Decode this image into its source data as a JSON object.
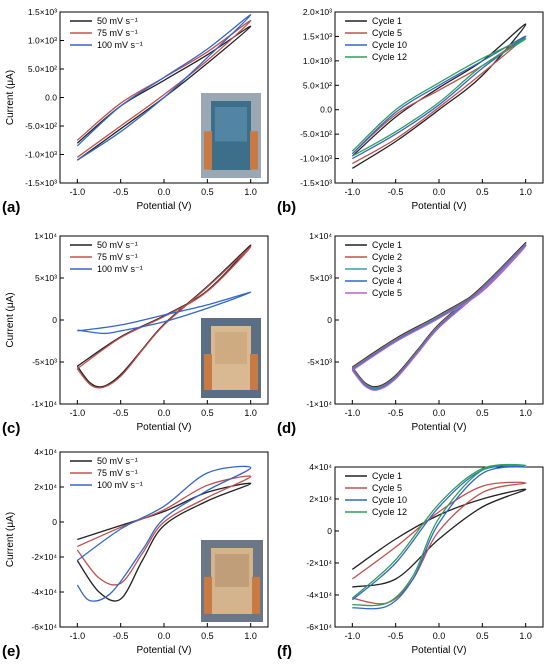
{
  "chart_data": [
    {
      "panel_label": "(a)",
      "type": "line",
      "xlabel": "Potential (V)",
      "ylabel": "Current (μA)",
      "xlim": [
        -1.2,
        1.2
      ],
      "ylim": [
        -1500,
        1500
      ],
      "xticks": [
        -1.0,
        -0.5,
        0.0,
        0.5,
        1.0
      ],
      "xtick_labels": [
        "-1.0",
        "-0.5",
        "0.0",
        "0.5",
        "1.0"
      ],
      "yticks": [
        -1500,
        -1000,
        -500,
        0,
        500,
        1000,
        1500
      ],
      "ytick_labels": [
        "-1.5×10³",
        "-1.0×10³",
        "-5.0×10²",
        "0.0",
        "5.0×10²",
        "1.0×10³",
        "1.5×10³"
      ],
      "legend": "top-left",
      "inset_photo": "blue-coated-electrode-photo",
      "series": [
        {
          "name": "50 mV s⁻¹",
          "color": "#222222",
          "x": [
            -1.0,
            -0.5,
            0.0,
            0.5,
            1.0,
            0.5,
            0.0,
            -0.5,
            -1.0
          ],
          "y": [
            -1100,
            -550,
            0,
            600,
            1250,
            750,
            300,
            -150,
            -800
          ]
        },
        {
          "name": "75 mV s⁻¹",
          "color": "#c0504d",
          "x": [
            -1.0,
            -0.5,
            0.0,
            0.5,
            1.0,
            0.5,
            0.0,
            -0.5,
            -1.0
          ],
          "y": [
            -1050,
            -500,
            50,
            650,
            1350,
            800,
            350,
            -100,
            -750
          ]
        },
        {
          "name": "100 mV s⁻¹",
          "color": "#3366cc",
          "x": [
            -1.0,
            -0.5,
            0.0,
            0.5,
            1.0,
            0.5,
            0.0,
            -0.5,
            -1.0
          ],
          "y": [
            -1100,
            -600,
            0,
            700,
            1450,
            850,
            350,
            -150,
            -850
          ]
        }
      ]
    },
    {
      "panel_label": "(b)",
      "type": "line",
      "xlabel": "Potential (V)",
      "ylabel": "",
      "xlim": [
        -1.2,
        1.2
      ],
      "ylim": [
        -1500,
        2000
      ],
      "xticks": [
        -1.0,
        -0.5,
        0.0,
        0.5,
        1.0
      ],
      "xtick_labels": [
        "-1.0",
        "-0.5",
        "0.0",
        "0.5",
        "1.0"
      ],
      "yticks": [
        -1500,
        -1000,
        -500,
        0,
        500,
        1000,
        1500,
        2000
      ],
      "ytick_labels": [
        "-1.5×10³",
        "-1.0×10³",
        "-5.0×10²",
        "0.0",
        "5.0×10²",
        "1.0×10³",
        "1.5×10³",
        "2.0×10³"
      ],
      "legend": "top-left",
      "series": [
        {
          "name": "Cycle 1",
          "color": "#222222",
          "x": [
            -1.0,
            -0.5,
            0.0,
            0.5,
            1.0,
            0.5,
            0.0,
            -0.5,
            -1.0
          ],
          "y": [
            -1200,
            -650,
            0,
            700,
            1750,
            1000,
            450,
            -150,
            -950
          ]
        },
        {
          "name": "Cycle 5",
          "color": "#c0504d",
          "x": [
            -1.0,
            -0.5,
            0.0,
            0.5,
            1.0,
            0.5,
            0.0,
            -0.5,
            -1.0
          ],
          "y": [
            -1100,
            -600,
            50,
            750,
            1500,
            900,
            400,
            -100,
            -900
          ]
        },
        {
          "name": "Cycle 10",
          "color": "#3366cc",
          "x": [
            -1.0,
            -0.5,
            0.0,
            0.5,
            1.0,
            0.5,
            0.0,
            -0.5,
            -1.0
          ],
          "y": [
            -1000,
            -500,
            100,
            850,
            1500,
            1000,
            500,
            -50,
            -900
          ]
        },
        {
          "name": "Cycle 12",
          "color": "#2e9e5b",
          "x": [
            -1.0,
            -0.5,
            0.0,
            0.5,
            1.0,
            0.5,
            0.0,
            -0.5,
            -1.0
          ],
          "y": [
            -950,
            -450,
            150,
            900,
            1450,
            1050,
            550,
            0,
            -850
          ]
        }
      ]
    },
    {
      "panel_label": "(c)",
      "type": "line",
      "xlabel": "Potential (V)",
      "ylabel": "Current (μA)",
      "xlim": [
        -1.2,
        1.2
      ],
      "ylim": [
        -10000,
        10000
      ],
      "xticks": [
        -1.0,
        -0.5,
        0.0,
        0.5,
        1.0
      ],
      "xtick_labels": [
        "-1.0",
        "-0.5",
        "0.0",
        "0.5",
        "1.0"
      ],
      "yticks": [
        -10000,
        -5000,
        0,
        5000,
        10000
      ],
      "ytick_labels": [
        "-1×10⁴",
        "-5×10³",
        "0",
        "5×10³",
        "1×10⁴"
      ],
      "legend": "top-left",
      "inset_photo": "light-wood-electrode-photo",
      "series": [
        {
          "name": "50 mV s⁻¹",
          "color": "#222222",
          "x": [
            -1.0,
            -0.85,
            -0.7,
            -0.5,
            -0.25,
            0.0,
            0.5,
            1.0,
            0.5,
            0.0,
            -0.5,
            -1.0
          ],
          "y": [
            -5500,
            -7500,
            -7900,
            -6500,
            -3500,
            -500,
            4000,
            8900,
            3500,
            500,
            -2000,
            -5500
          ]
        },
        {
          "name": "75 mV s⁻¹",
          "color": "#c0504d",
          "x": [
            -1.0,
            -0.85,
            -0.7,
            -0.5,
            -0.25,
            0.0,
            0.5,
            1.0,
            0.5,
            0.0,
            -0.5,
            -1.0
          ],
          "y": [
            -5800,
            -7700,
            -8000,
            -6700,
            -3600,
            -600,
            3900,
            8700,
            3400,
            400,
            -2100,
            -5800
          ]
        },
        {
          "name": "100 mV s⁻¹",
          "color": "#3366cc",
          "x": [
            -1.0,
            -0.7,
            -0.5,
            0.0,
            0.5,
            1.0,
            0.5,
            0.0,
            -0.5,
            -1.0
          ],
          "y": [
            -1200,
            -1600,
            -1300,
            -200,
            1400,
            3300,
            1800,
            600,
            -600,
            -1300
          ]
        }
      ]
    },
    {
      "panel_label": "(d)",
      "type": "line",
      "xlabel": "Potential (V)",
      "ylabel": "",
      "xlim": [
        -1.2,
        1.2
      ],
      "ylim": [
        -10000,
        10000
      ],
      "xticks": [
        -1.0,
        -0.5,
        0.0,
        0.5,
        1.0
      ],
      "xtick_labels": [
        "-1.0",
        "-0.5",
        "0.0",
        "0.5",
        "1.0"
      ],
      "yticks": [
        -10000,
        -5000,
        0,
        5000,
        10000
      ],
      "ytick_labels": [
        "-1×10⁴",
        "-5×10³",
        "0",
        "5×10³",
        "1×10⁴"
      ],
      "legend": "top-left",
      "series": [
        {
          "name": "Cycle 1",
          "color": "#222222",
          "x": [
            -1.0,
            -0.85,
            -0.7,
            -0.5,
            -0.25,
            0.0,
            0.5,
            1.0,
            0.5,
            0.0,
            -0.5,
            -1.0
          ],
          "y": [
            -5600,
            -7500,
            -7900,
            -6600,
            -3600,
            -500,
            4000,
            9200,
            3800,
            600,
            -2200,
            -5600
          ]
        },
        {
          "name": "Cycle 2",
          "color": "#c0504d",
          "x": [
            -1.0,
            -0.85,
            -0.7,
            -0.5,
            -0.25,
            0.0,
            0.5,
            1.0,
            0.5,
            0.0,
            -0.5,
            -1.0
          ],
          "y": [
            -5700,
            -7600,
            -8000,
            -6700,
            -3700,
            -600,
            3900,
            9100,
            3700,
            500,
            -2300,
            -5700
          ]
        },
        {
          "name": "Cycle 3",
          "color": "#2ea8a8",
          "x": [
            -1.0,
            -0.85,
            -0.7,
            -0.5,
            -0.25,
            0.0,
            0.5,
            1.0,
            0.5,
            0.0,
            -0.5,
            -1.0
          ],
          "y": [
            -5800,
            -7700,
            -8100,
            -6800,
            -3800,
            -700,
            3800,
            9000,
            3600,
            400,
            -2400,
            -5800
          ]
        },
        {
          "name": "Cycle 4",
          "color": "#3366cc",
          "x": [
            -1.0,
            -0.85,
            -0.7,
            -0.5,
            -0.25,
            0.0,
            0.5,
            1.0,
            0.5,
            0.0,
            -0.5,
            -1.0
          ],
          "y": [
            -5900,
            -7800,
            -8200,
            -6900,
            -3900,
            -800,
            3700,
            8900,
            3500,
            300,
            -2500,
            -5900
          ]
        },
        {
          "name": "Cycle 5",
          "color": "#b366cc",
          "x": [
            -1.0,
            -0.85,
            -0.7,
            -0.5,
            -0.25,
            0.0,
            0.5,
            1.0,
            0.5,
            0.0,
            -0.5,
            -1.0
          ],
          "y": [
            -6000,
            -7900,
            -8300,
            -7000,
            -4000,
            -900,
            3600,
            8800,
            3400,
            200,
            -2600,
            -6000
          ]
        }
      ]
    },
    {
      "panel_label": "(e)",
      "type": "line",
      "xlabel": "Potential (V)",
      "ylabel": "Current (μA)",
      "xlim": [
        -1.2,
        1.2
      ],
      "ylim": [
        -60000,
        40000
      ],
      "xticks": [
        -1.0,
        -0.5,
        0.0,
        0.5,
        1.0
      ],
      "xtick_labels": [
        "-1.0",
        "-0.5",
        "0.0",
        "0.5",
        "1.0"
      ],
      "yticks": [
        -60000,
        -40000,
        -20000,
        0,
        20000,
        40000
      ],
      "ytick_labels": [
        "-6×10⁴",
        "-4×10⁴",
        "-2×10⁴",
        "0",
        "2×10⁴",
        "4×10⁴"
      ],
      "legend": "top-left",
      "inset_photo": "wood-grain-electrode-photo",
      "series": [
        {
          "name": "50 mV s⁻¹",
          "color": "#222222",
          "x": [
            -1.0,
            -0.75,
            -0.5,
            -0.25,
            0.0,
            0.5,
            1.0,
            0.5,
            0.0,
            -0.5,
            -1.0
          ],
          "y": [
            -22000,
            -40000,
            -44000,
            -22000,
            -2000,
            12000,
            22000,
            17000,
            6000,
            -2000,
            -10000
          ]
        },
        {
          "name": "75 mV s⁻¹",
          "color": "#c0504d",
          "x": [
            -1.0,
            -0.75,
            -0.5,
            -0.25,
            0.0,
            0.5,
            1.0,
            0.5,
            0.0,
            -0.5,
            -1.0
          ],
          "y": [
            -16000,
            -32000,
            -35000,
            -18000,
            0,
            14000,
            26000,
            21000,
            7000,
            -3000,
            -14000
          ]
        },
        {
          "name": "100 mV s⁻¹",
          "color": "#3366cc",
          "x": [
            -1.0,
            -0.85,
            -0.6,
            -0.25,
            0.0,
            0.5,
            1.0,
            0.5,
            0.0,
            -0.5,
            -1.0
          ],
          "y": [
            -36000,
            -45000,
            -40000,
            -16000,
            2000,
            18000,
            31000,
            28000,
            9000,
            -4000,
            -22000
          ]
        }
      ]
    },
    {
      "panel_label": "(f)",
      "type": "line",
      "xlabel": "Potential (V)",
      "ylabel": "",
      "xlim": [
        -1.2,
        1.2
      ],
      "ylim": [
        -60000,
        40000
      ],
      "xticks": [
        -1.0,
        -0.5,
        0.0,
        0.5,
        1.0
      ],
      "xtick_labels": [
        "-1.0",
        "-0.5",
        "0.0",
        "0.5",
        "1.0"
      ],
      "yticks": [
        -60000,
        -40000,
        -20000,
        0,
        20000,
        40000
      ],
      "ytick_labels": [
        "-6×10⁴",
        "-4×10⁴",
        "-2×10⁴",
        "0",
        "2×10⁴",
        "4×10⁴"
      ],
      "legend": "top-left",
      "series": [
        {
          "name": "Cycle 1",
          "color": "#222222",
          "x": [
            -1.0,
            -0.5,
            0.0,
            0.5,
            1.0,
            0.5,
            0.0,
            -0.5,
            -1.0
          ],
          "y": [
            -35000,
            -30000,
            -5000,
            15000,
            26000,
            20000,
            10000,
            -5000,
            -24000
          ]
        },
        {
          "name": "Cycle 5",
          "color": "#c0504d",
          "x": [
            -1.0,
            -0.6,
            -0.3,
            0.0,
            0.5,
            1.0,
            0.5,
            0.0,
            -0.5,
            -1.0
          ],
          "y": [
            -42000,
            -45000,
            -30000,
            0,
            24000,
            30000,
            28000,
            12000,
            -10000,
            -30000
          ]
        },
        {
          "name": "Cycle 10",
          "color": "#3366cc",
          "x": [
            -1.0,
            -0.6,
            -0.3,
            0.0,
            0.5,
            1.0,
            0.5,
            0.0,
            -0.5,
            -1.0
          ],
          "y": [
            -48000,
            -47000,
            -30000,
            5000,
            36000,
            40000,
            38000,
            15000,
            -20000,
            -43000
          ]
        },
        {
          "name": "Cycle 12",
          "color": "#2e9e5b",
          "x": [
            -1.0,
            -0.6,
            -0.3,
            0.0,
            0.5,
            1.0,
            0.5,
            0.0,
            -0.5,
            -1.0
          ],
          "y": [
            -46000,
            -45000,
            -28000,
            8000,
            38000,
            41000,
            39000,
            17000,
            -18000,
            -42000
          ]
        }
      ]
    }
  ]
}
